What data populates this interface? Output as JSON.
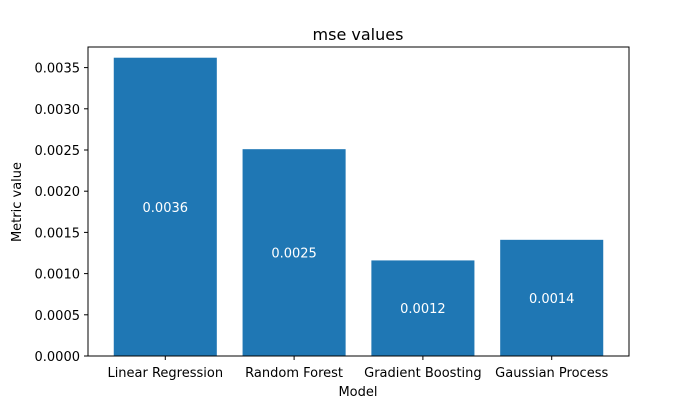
{
  "chart_data": {
    "type": "bar",
    "title": "mse values",
    "xlabel": "Model",
    "ylabel": "Metric value",
    "categories": [
      "Linear Regression",
      "Random Forest",
      "Gradient Boosting",
      "Gaussian Process"
    ],
    "values": [
      0.00362,
      0.00251,
      0.00116,
      0.00141
    ],
    "data_labels": [
      "0.0036",
      "0.0025",
      "0.0012",
      "0.0014"
    ],
    "ylim": [
      0,
      0.00375
    ],
    "yticks": [
      0,
      0.0005,
      0.001,
      0.0015,
      0.002,
      0.0025,
      0.003,
      0.0035
    ],
    "ytick_labels": [
      "0.0000",
      "0.0005",
      "0.0010",
      "0.0015",
      "0.0020",
      "0.0025",
      "0.0030",
      "0.0035"
    ],
    "grid": false,
    "legend": "none",
    "bar_color": "#1f77b4"
  }
}
